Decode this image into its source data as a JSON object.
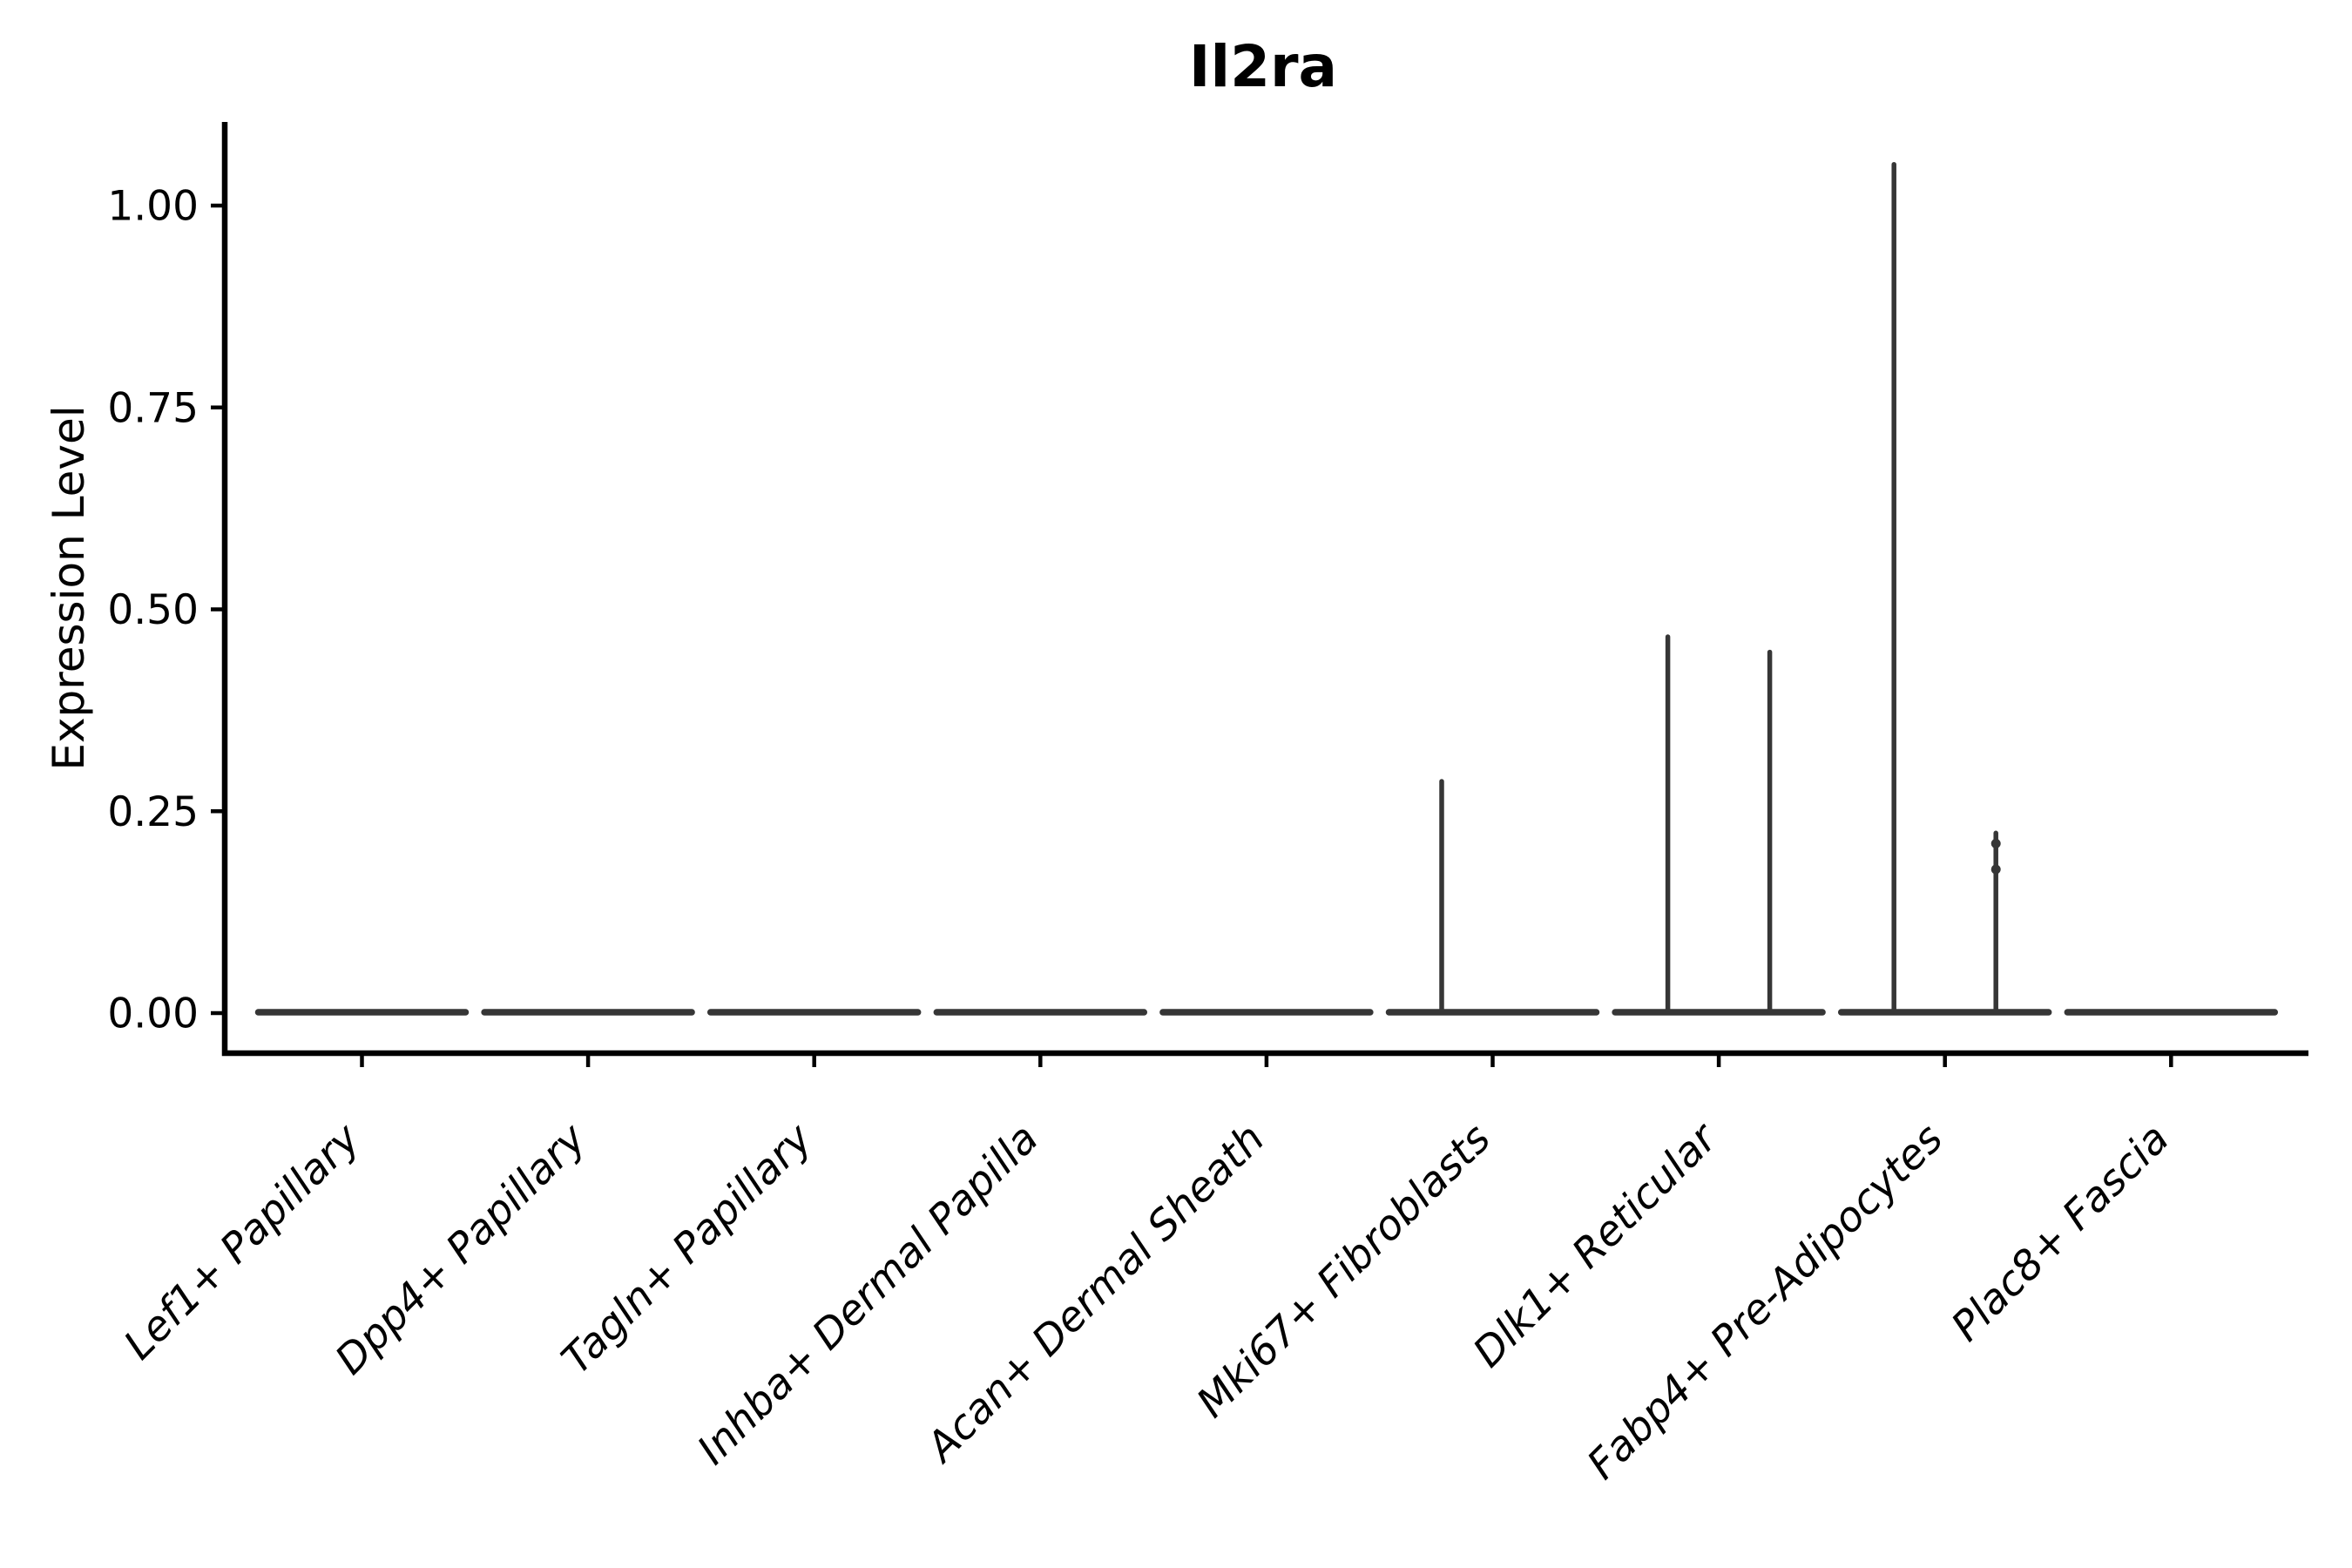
{
  "chart_data": {
    "type": "violin",
    "title": "Il2ra",
    "ylabel": "Expression Level",
    "xlabel": "",
    "categories": [
      "Lef1+ Papillary",
      "Dpp4+ Papillary",
      "Tagln+ Papillary",
      "Inhba+ Dermal Papilla",
      "Acan+ Dermal Sheath",
      "Mki67+ Fibroblasts",
      "Dlk1+ Reticular",
      "Fabp4+ Pre-Adipocytes",
      "Plac8+ Fascia"
    ],
    "yticks": {
      "values": [
        0,
        0.25,
        0.5,
        0.75,
        1.0
      ],
      "labels": [
        "0.00",
        "0.25",
        "0.50",
        "0.75",
        "1.00"
      ]
    },
    "ylim": [
      -0.05,
      1.1
    ],
    "grid": false,
    "legend": null,
    "x_tick_rotation_deg": 45,
    "x_tick_font_style": "italic",
    "violins": [
      {
        "category": "Lef1+ Papillary",
        "body": "flat-at-zero",
        "spikes": []
      },
      {
        "category": "Dpp4+ Papillary",
        "body": "flat-at-zero",
        "spikes": []
      },
      {
        "category": "Tagln+ Papillary",
        "body": "flat-at-zero",
        "spikes": []
      },
      {
        "category": "Inhba+ Dermal Papilla",
        "body": "flat-at-zero",
        "spikes": []
      },
      {
        "category": "Acan+ Dermal Sheath",
        "body": "flat-at-zero",
        "spikes": []
      },
      {
        "category": "Mki67+ Fibroblasts",
        "body": "flat-at-zero",
        "spikes": [
          {
            "side": "left",
            "value": 0.287
          }
        ]
      },
      {
        "category": "Dlk1+ Reticular",
        "body": "flat-at-zero",
        "spikes": [
          {
            "side": "left",
            "value": 0.466
          },
          {
            "side": "right",
            "value": 0.447
          }
        ]
      },
      {
        "category": "Fabp4+ Pre-Adipocytes",
        "body": "flat-at-zero",
        "spikes": [
          {
            "side": "left",
            "value": 1.051
          },
          {
            "side": "right",
            "value": 0.223,
            "knobs": [
              0.21,
              0.178
            ]
          }
        ]
      },
      {
        "category": "Plac8+ Fascia",
        "body": "flat-at-zero",
        "spikes": []
      }
    ],
    "colors": {
      "violin": "#363636",
      "axis": "#000000",
      "text": "#000000",
      "background": "#ffffff"
    }
  }
}
